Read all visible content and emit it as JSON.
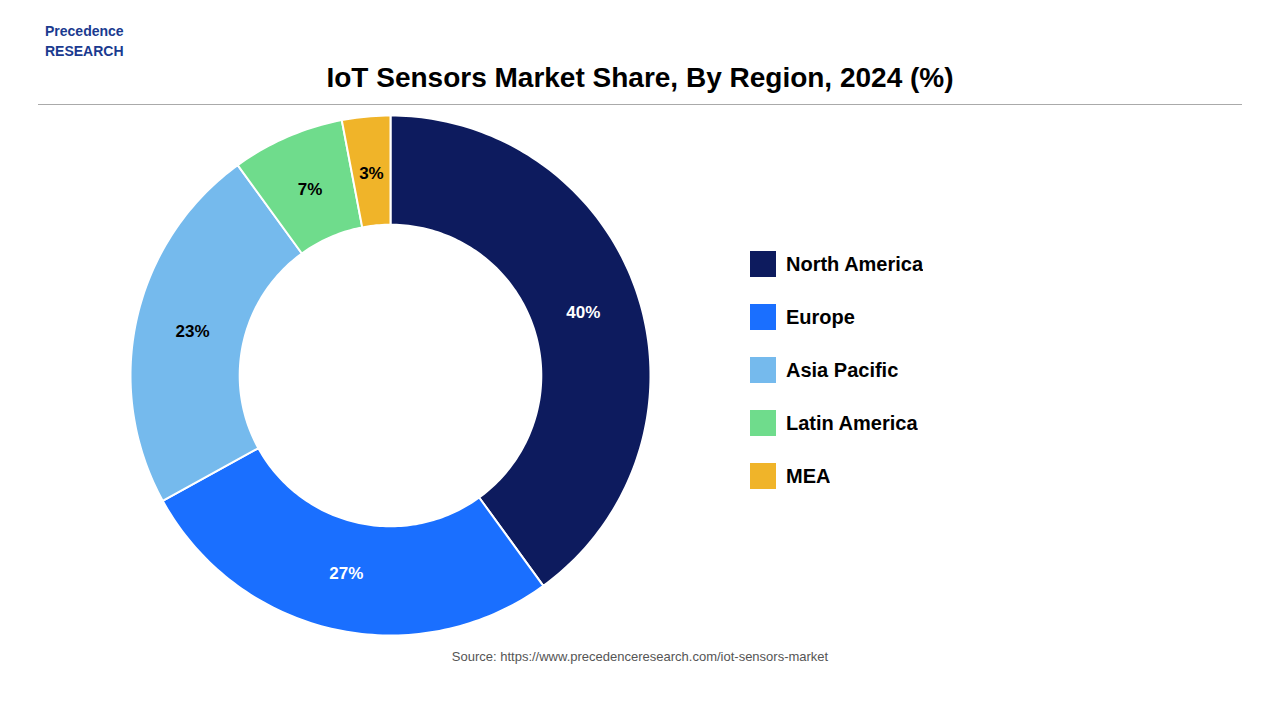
{
  "chart_data": {
    "type": "pie",
    "title": "IoT Sensors Market Share, By Region, 2024 (%)",
    "categories": [
      "North America",
      "Europe",
      "Asia Pacific",
      "Latin America",
      "MEA"
    ],
    "values": [
      40,
      27,
      23,
      7,
      3
    ],
    "value_labels": [
      "40%",
      "27%",
      "23%",
      "7%",
      "3%"
    ],
    "colors": [
      "#0d1b5e",
      "#1a6fff",
      "#75baed",
      "#6fdc8c",
      "#f0b429"
    ],
    "data_labels": true,
    "legend": "right",
    "annotations": [
      "Precedence\nRESEARCH",
      "Source: https://www.precedenceresearch.com/iot-sensors-market"
    ]
  }
}
